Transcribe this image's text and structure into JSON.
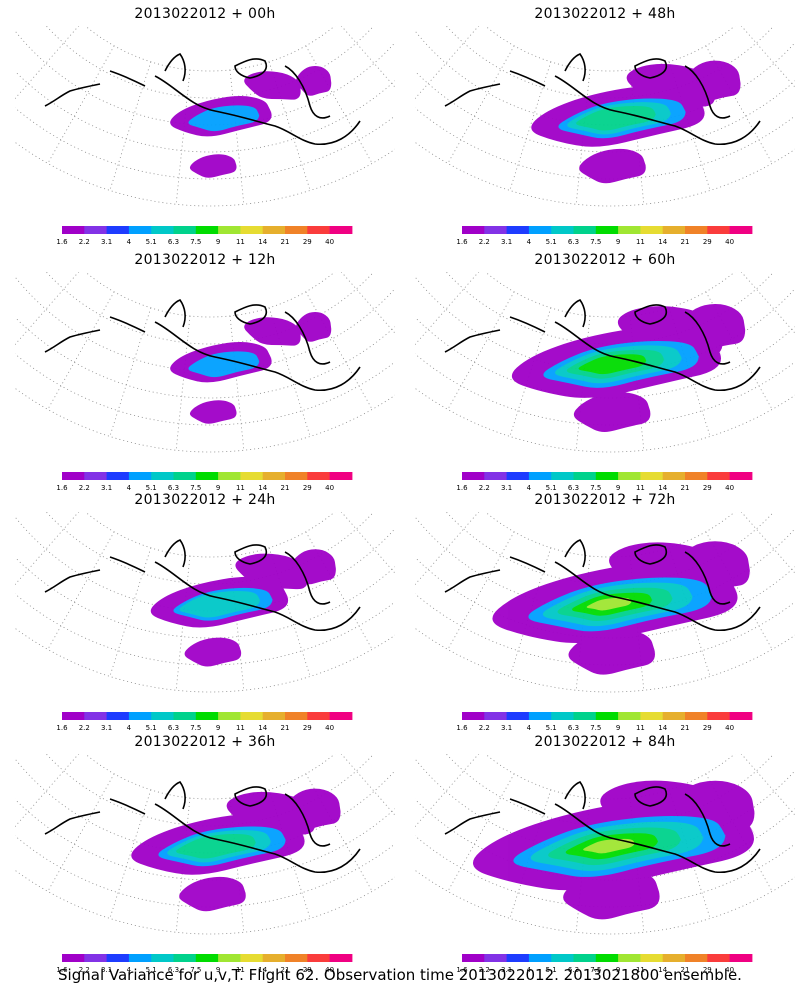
{
  "panels": [
    {
      "title": "2013022012 + 00h",
      "fill_level": 1
    },
    {
      "title": "2013022012 + 48h",
      "fill_level": 3
    },
    {
      "title": "2013022012 + 12h",
      "fill_level": 1
    },
    {
      "title": "2013022012 + 60h",
      "fill_level": 4
    },
    {
      "title": "2013022012 + 24h",
      "fill_level": 2
    },
    {
      "title": "2013022012 + 72h",
      "fill_level": 5
    },
    {
      "title": "2013022012 + 36h",
      "fill_level": 3
    },
    {
      "title": "2013022012 + 84h",
      "fill_level": 6
    }
  ],
  "colorbar": {
    "labels": [
      "1.6",
      "2.2",
      "3.1",
      "4",
      "5.1",
      "6.3",
      "7.5",
      "9",
      "11",
      "14",
      "21",
      "29",
      "40"
    ],
    "colors": [
      "#a000c8",
      "#8232e6",
      "#1e3cff",
      "#00a0ff",
      "#00c8c8",
      "#00d28c",
      "#00dc00",
      "#a0e632",
      "#e6dc32",
      "#e6af2d",
      "#f08228",
      "#fa3c3c",
      "#f00082"
    ]
  },
  "caption": "Signal Variance for u,v,T. Flight 62. Observation time 2013022012. 2013021800 ensemble."
}
